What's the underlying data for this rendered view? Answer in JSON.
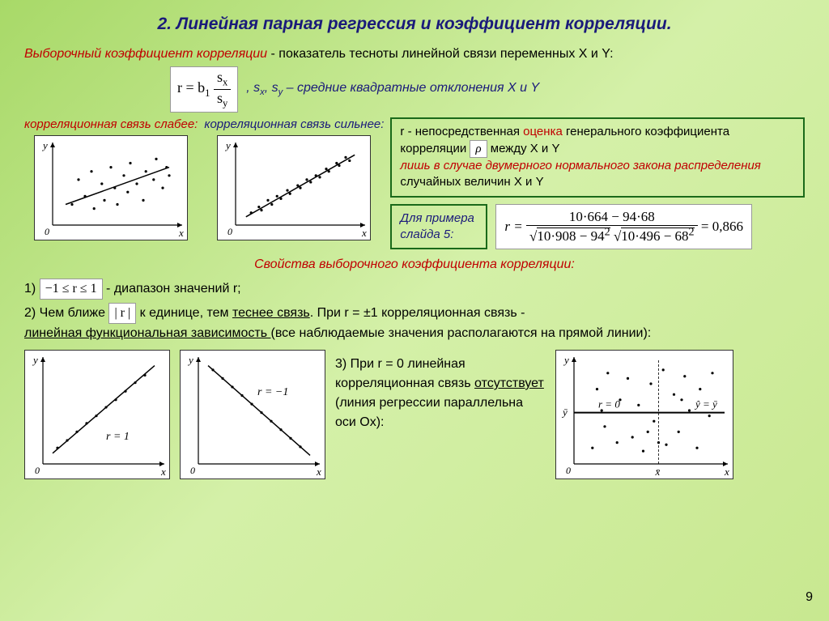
{
  "title": "2. Линейная парная регрессия и коэффициент корреляции.",
  "intro": {
    "term": "Выборочный коэффициент корреляции",
    "def": " - показатель тесноты линейной связи переменных X и Y:",
    "formula_left": "r = b",
    "formula_sub": "1",
    "frac_num": "s",
    "frac_num_sub": "x",
    "frac_den": "s",
    "frac_den_sub": "y",
    "tail1": ",  s",
    "tail_sx": "x",
    "tail2": ", s",
    "tail_sy": "y",
    "tail3": " – средние квадратные отклонения X и Y"
  },
  "labels": {
    "weak": "корреляционная связь слабее:",
    "strong": "корреляционная связь сильнее:"
  },
  "weak_chart": {
    "points": [
      [
        0.15,
        0.25
      ],
      [
        0.2,
        0.55
      ],
      [
        0.25,
        0.35
      ],
      [
        0.3,
        0.65
      ],
      [
        0.32,
        0.2
      ],
      [
        0.38,
        0.5
      ],
      [
        0.4,
        0.3
      ],
      [
        0.45,
        0.7
      ],
      [
        0.48,
        0.45
      ],
      [
        0.5,
        0.25
      ],
      [
        0.55,
        0.6
      ],
      [
        0.58,
        0.4
      ],
      [
        0.6,
        0.75
      ],
      [
        0.65,
        0.5
      ],
      [
        0.7,
        0.3
      ],
      [
        0.72,
        0.65
      ],
      [
        0.78,
        0.55
      ],
      [
        0.8,
        0.8
      ],
      [
        0.85,
        0.45
      ],
      [
        0.88,
        0.7
      ],
      [
        0.9,
        0.6
      ]
    ],
    "line": {
      "x1": 0.1,
      "y1": 0.25,
      "x2": 0.9,
      "y2": 0.7
    }
  },
  "strong_chart": {
    "points": [
      [
        0.12,
        0.15
      ],
      [
        0.18,
        0.22
      ],
      [
        0.2,
        0.18
      ],
      [
        0.25,
        0.3
      ],
      [
        0.28,
        0.25
      ],
      [
        0.32,
        0.35
      ],
      [
        0.35,
        0.32
      ],
      [
        0.4,
        0.42
      ],
      [
        0.42,
        0.38
      ],
      [
        0.48,
        0.48
      ],
      [
        0.5,
        0.45
      ],
      [
        0.55,
        0.55
      ],
      [
        0.58,
        0.52
      ],
      [
        0.62,
        0.6
      ],
      [
        0.65,
        0.58
      ],
      [
        0.7,
        0.68
      ],
      [
        0.72,
        0.65
      ],
      [
        0.78,
        0.75
      ],
      [
        0.8,
        0.72
      ],
      [
        0.85,
        0.82
      ],
      [
        0.88,
        0.78
      ]
    ],
    "line": {
      "x1": 0.08,
      "y1": 0.1,
      "x2": 0.92,
      "y2": 0.85
    }
  },
  "box1": {
    "t1": "r - непосредственная ",
    "t2": "оценка",
    "t3": " генерального коэффициента корреляции ",
    "rho": "ρ",
    "t4": " между X и Y ",
    "t5": "лишь в случае двумерного нормального закона распределения",
    "t6": " случайных величин X и Y"
  },
  "example": {
    "label": "Для примера слайда 5:",
    "lhs": "r =",
    "num": "10·664 − 94·68",
    "den_a": "10·908 − 94",
    "den_b": "10·496 − 68",
    "rhs": "= 0,866"
  },
  "props_title": "Свойства выборочного коэффициента корреляции:",
  "prop1": {
    "lead": "1) ",
    "range": "−1 ≤ r ≤ 1",
    "tail": " - диапазон значений r;"
  },
  "prop2": {
    "lead": "2) Чем ближе ",
    "abs": "| r |",
    "mid": " к единице, тем ",
    "u1": "теснее связь",
    "tail1": ". При r = ±1 корреляционная связь  - ",
    "u2": "линейная функциональная зависимость ",
    "tail2": "(все наблюдаемые значения располагаются на прямой линии):"
  },
  "r1_chart": {
    "points": [
      [
        0.12,
        0.15
      ],
      [
        0.2,
        0.22
      ],
      [
        0.28,
        0.3
      ],
      [
        0.36,
        0.38
      ],
      [
        0.44,
        0.45
      ],
      [
        0.52,
        0.53
      ],
      [
        0.6,
        0.6
      ],
      [
        0.68,
        0.68
      ],
      [
        0.76,
        0.76
      ],
      [
        0.84,
        0.83
      ]
    ],
    "line": {
      "x1": 0.08,
      "y1": 0.1,
      "x2": 0.92,
      "y2": 0.92
    },
    "label": "r = 1"
  },
  "rm1_chart": {
    "points": [
      [
        0.12,
        0.88
      ],
      [
        0.2,
        0.8
      ],
      [
        0.28,
        0.72
      ],
      [
        0.36,
        0.64
      ],
      [
        0.44,
        0.56
      ],
      [
        0.52,
        0.48
      ],
      [
        0.6,
        0.4
      ],
      [
        0.68,
        0.32
      ],
      [
        0.76,
        0.24
      ],
      [
        0.84,
        0.16
      ]
    ],
    "line": {
      "x1": 0.08,
      "y1": 0.92,
      "x2": 0.92,
      "y2": 0.08
    },
    "label": "r = −1"
  },
  "prop3": {
    "t1": "3) При r = 0 линейная корреляционная связь ",
    "u": "отсутствует",
    "t2": " (линия регрессии параллельна оси Ox):"
  },
  "r0_chart": {
    "points": [
      [
        0.12,
        0.15
      ],
      [
        0.15,
        0.7
      ],
      [
        0.2,
        0.35
      ],
      [
        0.22,
        0.85
      ],
      [
        0.28,
        0.2
      ],
      [
        0.3,
        0.6
      ],
      [
        0.35,
        0.8
      ],
      [
        0.38,
        0.25
      ],
      [
        0.42,
        0.55
      ],
      [
        0.45,
        0.12
      ],
      [
        0.5,
        0.75
      ],
      [
        0.52,
        0.4
      ],
      [
        0.58,
        0.88
      ],
      [
        0.6,
        0.18
      ],
      [
        0.65,
        0.65
      ],
      [
        0.68,
        0.3
      ],
      [
        0.72,
        0.82
      ],
      [
        0.75,
        0.5
      ],
      [
        0.8,
        0.15
      ],
      [
        0.82,
        0.7
      ],
      [
        0.88,
        0.45
      ],
      [
        0.9,
        0.85
      ],
      [
        0.18,
        0.5
      ],
      [
        0.48,
        0.3
      ],
      [
        0.55,
        0.2
      ],
      [
        0.7,
        0.6
      ]
    ],
    "hline_y": 0.48,
    "vline_x": 0.55,
    "label": "r = 0",
    "ybar": "ȳ",
    "xbar": "x̄",
    "eq": "ŷ = ȳ"
  },
  "pagenum": "9",
  "colors": {
    "axis": "#000000",
    "point": "#000000",
    "line": "#000000"
  }
}
